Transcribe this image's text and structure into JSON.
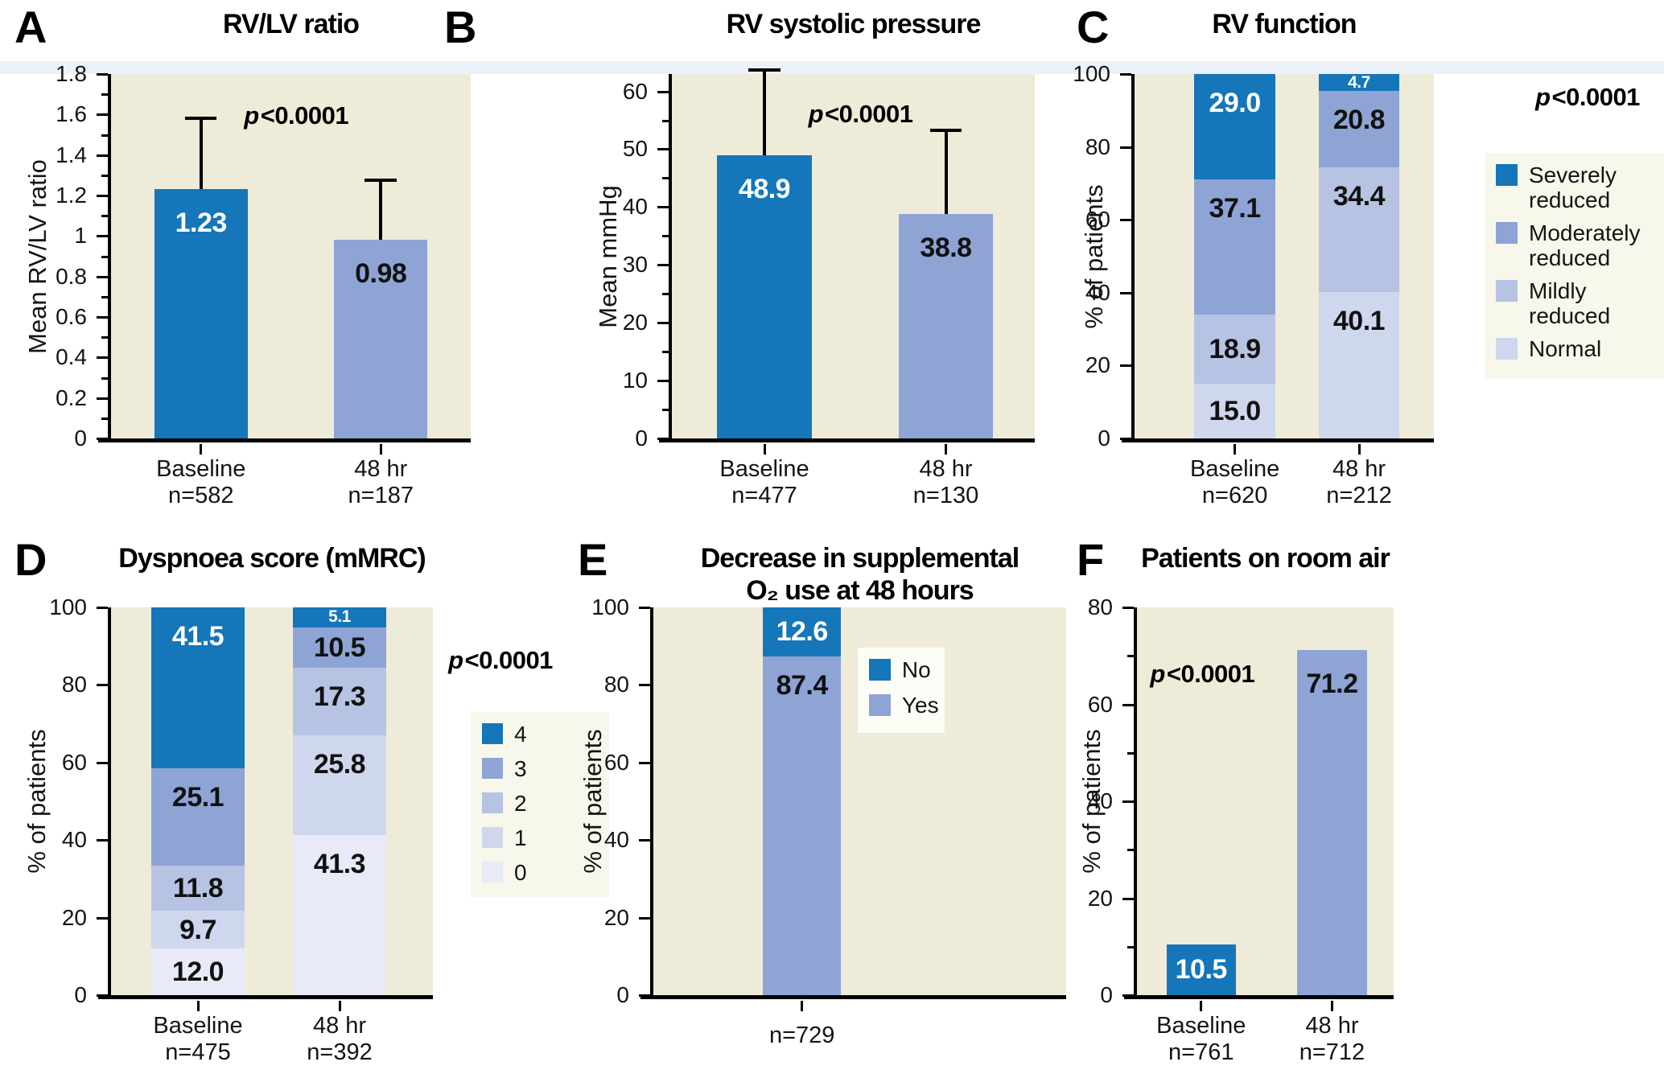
{
  "figure": {
    "palette": {
      "blue": "#1576b9",
      "per1": "#8da4d5",
      "per2": "#b7c3e3",
      "per3": "#cfd7ee",
      "per4": "#e8ebf7",
      "plot_bg": "#eeebd9",
      "legend_bg": "#f8f7ec",
      "legend_bg_white": "#fdfdf8",
      "top_band": "#ebf2f9",
      "axis_color": "#000000",
      "label_dark": "#111111",
      "label_light": "#ffffff"
    }
  },
  "chart_data": [
    {
      "panel": "A",
      "type": "bar",
      "title": [
        "RV/LV ratio"
      ],
      "ylabel": "Mean RV/LV ratio",
      "ymax": 1.8,
      "yticks": [
        {
          "v": 0,
          "t": "0"
        },
        {
          "v": 0.2,
          "t": "0.2"
        },
        {
          "v": 0.4,
          "t": "0.4"
        },
        {
          "v": 0.6,
          "t": "0.6"
        },
        {
          "v": 0.8,
          "t": "0.8"
        },
        {
          "v": 1,
          "t": "1"
        },
        {
          "v": 1.2,
          "t": "1.2"
        },
        {
          "v": 1.4,
          "t": "1.4"
        },
        {
          "v": 1.6,
          "t": "1.6"
        },
        {
          "v": 1.8,
          "t": "1.8"
        }
      ],
      "yminor": [
        0.1,
        0.3,
        0.5,
        0.7,
        0.9,
        1.1,
        1.3,
        1.5,
        1.7
      ],
      "p_label": "p<0.0001",
      "categories": [
        [
          "Baseline",
          "n=582"
        ],
        [
          "48 hr",
          "n=187"
        ]
      ],
      "bars": [
        {
          "value": 1.23,
          "label": "1.23",
          "color": "blue",
          "label_color": "#ffffff",
          "error_high": 1.59
        },
        {
          "value": 0.98,
          "label": "0.98",
          "color": "per1",
          "label_color": "#111111",
          "error_high": 1.285
        }
      ]
    },
    {
      "panel": "B",
      "type": "bar",
      "title": [
        "RV systolic pressure"
      ],
      "ylabel": "Mean mmHg",
      "ymax": 63,
      "yticks": [
        {
          "v": 0,
          "t": "0"
        },
        {
          "v": 10,
          "t": "10"
        },
        {
          "v": 20,
          "t": "20"
        },
        {
          "v": 30,
          "t": "30"
        },
        {
          "v": 40,
          "t": "40"
        },
        {
          "v": 50,
          "t": "50"
        },
        {
          "v": 60,
          "t": "60"
        }
      ],
      "yminor": [
        5,
        15,
        25,
        35,
        45,
        55
      ],
      "p_label": "p<0.0001",
      "categories": [
        [
          "Baseline",
          "n=477"
        ],
        [
          "48 hr",
          "n=130"
        ]
      ],
      "bars": [
        {
          "value": 48.9,
          "label": "48.9",
          "color": "blue",
          "label_color": "#ffffff",
          "error_high": 64
        },
        {
          "value": 38.8,
          "label": "38.8",
          "color": "per1",
          "label_color": "#111111",
          "error_high": 53.5
        }
      ]
    },
    {
      "panel": "C",
      "type": "stacked",
      "title": [
        "RV function"
      ],
      "ylabel": "% of patients",
      "ymax": 100,
      "yticks": [
        {
          "v": 0,
          "t": "0"
        },
        {
          "v": 20,
          "t": "20"
        },
        {
          "v": 40,
          "t": "40"
        },
        {
          "v": 60,
          "t": "60"
        },
        {
          "v": 80,
          "t": "80"
        },
        {
          "v": 100,
          "t": "100"
        }
      ],
      "yminor": [],
      "p_label": "p<0.0001",
      "categories": [
        [
          "Baseline",
          "n=620"
        ],
        [
          "48 hr",
          "n=212"
        ]
      ],
      "columns": [
        {
          "segments": [
            {
              "value": 15.0,
              "label": "15.0",
              "color": "per3",
              "label_color": "#111111",
              "pos": "center"
            },
            {
              "value": 18.9,
              "label": "18.9",
              "color": "per2",
              "label_color": "#111111",
              "pos": "center"
            },
            {
              "value": 37.1,
              "label": "37.1",
              "color": "per1",
              "label_color": "#111111",
              "pos": "top"
            },
            {
              "value": 29.0,
              "label": "29.0",
              "color": "blue",
              "label_color": "#ffffff",
              "pos": "top"
            }
          ]
        },
        {
          "segments": [
            {
              "value": 40.1,
              "label": "40.1",
              "color": "per3",
              "label_color": "#111111",
              "pos": "top"
            },
            {
              "value": 34.4,
              "label": "34.4",
              "color": "per2",
              "label_color": "#111111",
              "pos": "top"
            },
            {
              "value": 20.8,
              "label": "20.8",
              "color": "per1",
              "label_color": "#111111",
              "pos": "top"
            },
            {
              "value": 4.7,
              "label": "4.7",
              "color": "blue",
              "label_color": "#ffffff",
              "pos": "center",
              "small": true
            }
          ]
        }
      ],
      "legend": {
        "items": [
          {
            "label": "Severely reduced",
            "color": "blue"
          },
          {
            "label": "Moderately reduced",
            "color": "per1"
          },
          {
            "label": "Mildly reduced",
            "color": "per2"
          },
          {
            "label": "Normal",
            "color": "per3"
          }
        ]
      }
    },
    {
      "panel": "D",
      "type": "stacked",
      "title": [
        "Dyspnoea score (mMRC)"
      ],
      "ylabel": "% of patients",
      "ymax": 100,
      "yticks": [
        {
          "v": 0,
          "t": "0"
        },
        {
          "v": 20,
          "t": "20"
        },
        {
          "v": 40,
          "t": "40"
        },
        {
          "v": 60,
          "t": "60"
        },
        {
          "v": 80,
          "t": "80"
        },
        {
          "v": 100,
          "t": "100"
        }
      ],
      "yminor": [],
      "p_label": "p<0.0001",
      "categories": [
        [
          "Baseline",
          "n=475"
        ],
        [
          "48 hr",
          "n=392"
        ]
      ],
      "columns": [
        {
          "segments": [
            {
              "value": 12.0,
              "label": "12.0",
              "color": "per4",
              "label_color": "#111111",
              "pos": "center"
            },
            {
              "value": 9.7,
              "label": "9.7",
              "color": "per3",
              "label_color": "#111111",
              "pos": "center"
            },
            {
              "value": 11.8,
              "label": "11.8",
              "color": "per2",
              "label_color": "#111111",
              "pos": "center"
            },
            {
              "value": 25.1,
              "label": "25.1",
              "color": "per1",
              "label_color": "#111111",
              "pos": "top"
            },
            {
              "value": 41.5,
              "label": "41.5",
              "color": "blue",
              "label_color": "#ffffff",
              "pos": "top"
            }
          ]
        },
        {
          "segments": [
            {
              "value": 41.3,
              "label": "41.3",
              "color": "per4",
              "label_color": "#111111",
              "pos": "top"
            },
            {
              "value": 25.8,
              "label": "25.8",
              "color": "per3",
              "label_color": "#111111",
              "pos": "top"
            },
            {
              "value": 17.3,
              "label": "17.3",
              "color": "per2",
              "label_color": "#111111",
              "pos": "top"
            },
            {
              "value": 10.5,
              "label": "10.5",
              "color": "per1",
              "label_color": "#111111",
              "pos": "center"
            },
            {
              "value": 5.1,
              "label": "5.1",
              "color": "blue",
              "label_color": "#ffffff",
              "pos": "center",
              "small": true
            }
          ]
        }
      ],
      "legend": {
        "items": [
          {
            "label": "4",
            "color": "blue"
          },
          {
            "label": "3",
            "color": "per1"
          },
          {
            "label": "2",
            "color": "per2"
          },
          {
            "label": "1",
            "color": "per3"
          },
          {
            "label": "0",
            "color": "per4"
          }
        ]
      }
    },
    {
      "panel": "E",
      "type": "stacked",
      "title": [
        "Decrease in supplemental",
        "O₂ use at 48 hours"
      ],
      "ylabel": "% of patients",
      "ymax": 100,
      "yticks": [
        {
          "v": 0,
          "t": "0"
        },
        {
          "v": 20,
          "t": "20"
        },
        {
          "v": 40,
          "t": "40"
        },
        {
          "v": 60,
          "t": "60"
        },
        {
          "v": 80,
          "t": "80"
        },
        {
          "v": 100,
          "t": "100"
        }
      ],
      "yminor": [],
      "categories": [
        [
          "n=729"
        ]
      ],
      "columns": [
        {
          "segments": [
            {
              "value": 87.4,
              "label": "87.4",
              "color": "per1",
              "label_color": "#111111",
              "pos": "top"
            },
            {
              "value": 12.6,
              "label": "12.6",
              "color": "blue",
              "label_color": "#ffffff",
              "pos": "center"
            }
          ]
        }
      ],
      "legend": {
        "white_box": true,
        "items": [
          {
            "label": "No",
            "color": "blue"
          },
          {
            "label": "Yes",
            "color": "per1"
          }
        ]
      }
    },
    {
      "panel": "F",
      "type": "bar",
      "title": [
        "Patients on room air"
      ],
      "ylabel": "% of patients",
      "ymax": 80,
      "yticks": [
        {
          "v": 0,
          "t": "0"
        },
        {
          "v": 20,
          "t": "20"
        },
        {
          "v": 40,
          "t": "40"
        },
        {
          "v": 60,
          "t": "60"
        },
        {
          "v": 80,
          "t": "80"
        }
      ],
      "yminor": [
        10,
        30,
        50,
        70
      ],
      "p_label": "p<0.0001",
      "categories": [
        [
          "Baseline",
          "n=761"
        ],
        [
          "48 hr",
          "n=712"
        ]
      ],
      "bars": [
        {
          "value": 10.5,
          "label": "10.5",
          "color": "blue",
          "label_color": "#ffffff"
        },
        {
          "value": 71.2,
          "label": "71.2",
          "color": "per1",
          "label_color": "#111111"
        }
      ]
    }
  ]
}
